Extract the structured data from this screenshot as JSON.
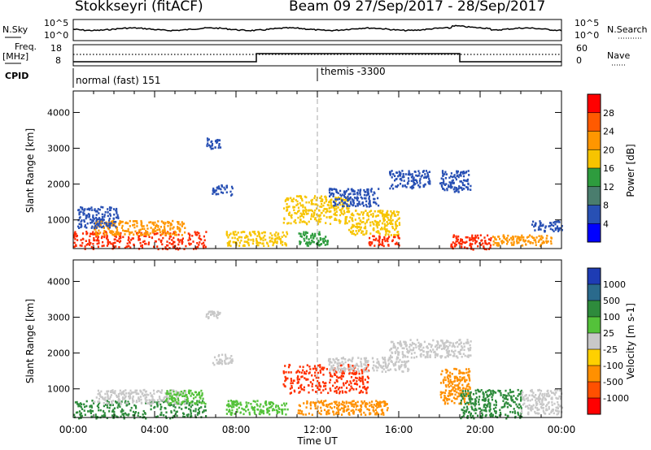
{
  "header": {
    "station": "Stokkseyri (fitACF)",
    "beam_date": "Beam 09  27/Sep/2017 - 28/Sep/2017"
  },
  "top_panels": {
    "nsky_label": "N.Sky",
    "nsky_ticks": [
      "10^5",
      "10^0"
    ],
    "nsearch_label": "N.Search",
    "nsearch_ticks": [
      "10^5",
      "10^0"
    ],
    "freq_label_1": "Freq.",
    "freq_label_2": "[MHz]",
    "freq_ticks": [
      "18",
      "8"
    ],
    "nave_label": "Nave",
    "nave_ticks": [
      "60",
      "0"
    ],
    "cpid_label": "CPID",
    "cpid_left": "normal (fast) 151",
    "cpid_right": "themis -3300"
  },
  "chart_data": [
    {
      "type": "heatmap",
      "name": "power",
      "ylabel": "Slant Range [km]",
      "xlabel": "",
      "ylim": [
        200,
        4600
      ],
      "yticks": [
        "1000",
        "2000",
        "3000",
        "4000"
      ],
      "colorbar_label": "Power [dB]",
      "colorbar_ticks": [
        "28",
        "24",
        "20",
        "16",
        "12",
        "8",
        "4"
      ],
      "colorbar_colors": [
        "#ff0000",
        "#ff5a00",
        "#ff9600",
        "#f7c400",
        "#2e9c3e",
        "#4a7d6e",
        "#2850b4",
        "#0000ff"
      ],
      "scatter_regions": [
        {
          "t0": 0.0,
          "t1": 6.5,
          "r0": 200,
          "r1": 700,
          "color": "#ff2a00"
        },
        {
          "t0": 1.0,
          "t1": 5.5,
          "r0": 600,
          "r1": 1000,
          "color": "#ff9600"
        },
        {
          "t0": 0.2,
          "t1": 2.2,
          "r0": 800,
          "r1": 1400,
          "color": "#2850b4"
        },
        {
          "t0": 6.5,
          "t1": 7.2,
          "r0": 3000,
          "r1": 3300,
          "color": "#2850b4"
        },
        {
          "t0": 6.8,
          "t1": 7.8,
          "r0": 1700,
          "r1": 2000,
          "color": "#2850b4"
        },
        {
          "t0": 7.5,
          "t1": 10.5,
          "r0": 300,
          "r1": 700,
          "color": "#f7c400"
        },
        {
          "t0": 10.3,
          "t1": 13.5,
          "r0": 900,
          "r1": 1700,
          "color": "#f7c400"
        },
        {
          "t0": 11.0,
          "t1": 12.5,
          "r0": 300,
          "r1": 700,
          "color": "#2e9c3e"
        },
        {
          "t0": 12.5,
          "t1": 15.0,
          "r0": 1400,
          "r1": 1900,
          "color": "#2850b4"
        },
        {
          "t0": 13.5,
          "t1": 16.0,
          "r0": 600,
          "r1": 1300,
          "color": "#f7c400"
        },
        {
          "t0": 14.5,
          "t1": 16.0,
          "r0": 300,
          "r1": 600,
          "color": "#ff2a00"
        },
        {
          "t0": 15.5,
          "t1": 17.5,
          "r0": 1900,
          "r1": 2400,
          "color": "#2850b4"
        },
        {
          "t0": 18.0,
          "t1": 19.5,
          "r0": 1800,
          "r1": 2400,
          "color": "#2850b4"
        },
        {
          "t0": 18.5,
          "t1": 20.5,
          "r0": 200,
          "r1": 600,
          "color": "#ff2a00"
        },
        {
          "t0": 20.5,
          "t1": 23.5,
          "r0": 300,
          "r1": 600,
          "color": "#ff9600"
        },
        {
          "t0": 22.5,
          "t1": 24.0,
          "r0": 700,
          "r1": 1000,
          "color": "#2850b4"
        }
      ]
    },
    {
      "type": "heatmap",
      "name": "velocity",
      "ylabel": "Slant Range [km]",
      "xlabel": "Time UT",
      "ylim": [
        200,
        4600
      ],
      "yticks": [
        "1000",
        "2000",
        "3000",
        "4000"
      ],
      "xticks": [
        "00:00",
        "04:00",
        "08:00",
        "12:00",
        "16:00",
        "20:00",
        "00:00"
      ],
      "xlim": [
        0,
        24
      ],
      "colorbar_label": "Velocity [m s-1]",
      "colorbar_ticks": [
        "1000",
        "500",
        "100",
        "25",
        "-25",
        "-100",
        "-500",
        "-1000"
      ],
      "colorbar_colors": [
        "#1e3cb4",
        "#2a6a8c",
        "#2e8b3c",
        "#54c23a",
        "#c8c8c8",
        "#ffd000",
        "#ff9000",
        "#ff5000",
        "#ff0000"
      ],
      "scatter_regions": [
        {
          "t0": 0.0,
          "t1": 6.5,
          "r0": 200,
          "r1": 700,
          "color": "#2e8b3c"
        },
        {
          "t0": 1.0,
          "t1": 5.5,
          "r0": 600,
          "r1": 1000,
          "color": "#c8c8c8"
        },
        {
          "t0": 4.5,
          "t1": 6.5,
          "r0": 600,
          "r1": 1000,
          "color": "#54c23a"
        },
        {
          "t0": 6.5,
          "t1": 7.2,
          "r0": 3000,
          "r1": 3200,
          "color": "#c8c8c8"
        },
        {
          "t0": 6.8,
          "t1": 7.8,
          "r0": 1700,
          "r1": 2000,
          "color": "#c8c8c8"
        },
        {
          "t0": 7.5,
          "t1": 10.5,
          "r0": 300,
          "r1": 700,
          "color": "#54c23a"
        },
        {
          "t0": 10.3,
          "t1": 14.5,
          "r0": 900,
          "r1": 1700,
          "color": "#ff3000"
        },
        {
          "t0": 11.0,
          "t1": 15.5,
          "r0": 300,
          "r1": 700,
          "color": "#ff9000"
        },
        {
          "t0": 12.5,
          "t1": 16.5,
          "r0": 1500,
          "r1": 1900,
          "color": "#c8c8c8"
        },
        {
          "t0": 15.5,
          "t1": 19.5,
          "r0": 1900,
          "r1": 2400,
          "color": "#c8c8c8"
        },
        {
          "t0": 18.0,
          "t1": 19.5,
          "r0": 600,
          "r1": 1600,
          "color": "#ff9000"
        },
        {
          "t0": 19.0,
          "t1": 22.0,
          "r0": 200,
          "r1": 1000,
          "color": "#2e8b3c"
        },
        {
          "t0": 22.0,
          "t1": 24.0,
          "r0": 300,
          "r1": 1000,
          "color": "#c8c8c8"
        }
      ]
    }
  ]
}
